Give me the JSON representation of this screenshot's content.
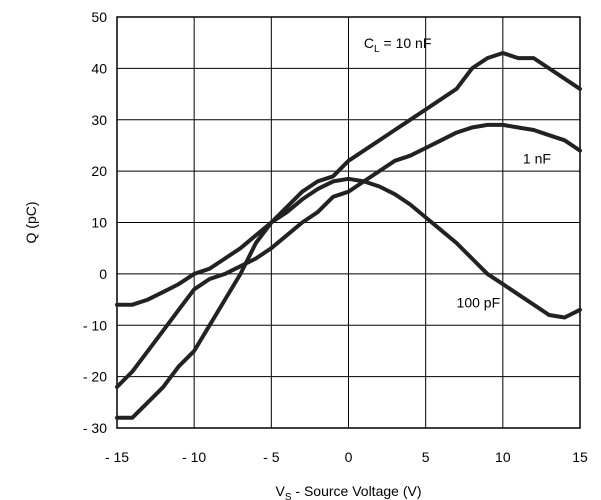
{
  "chart_data": {
    "type": "line",
    "xlabel": {
      "main": "V",
      "sub": "S",
      "rest": " - Source Voltage (V)"
    },
    "ylabel": "Q (pC)",
    "xlim": [
      -15,
      15
    ],
    "ylim": [
      -30,
      50
    ],
    "xticks": [
      -15,
      -10,
      -5,
      0,
      5,
      10,
      15
    ],
    "yticks": [
      -30,
      -20,
      -10,
      0,
      10,
      20,
      30,
      40,
      50
    ],
    "xtick_labels": [
      "- 15",
      "- 10",
      "- 5",
      "0",
      "5",
      "10",
      "15"
    ],
    "ytick_labels": [
      "- 30",
      "- 20",
      "- 10",
      "0",
      "10",
      "20",
      "30",
      "40",
      "50"
    ],
    "grid": true,
    "series": [
      {
        "name": "C_L = 10 nF",
        "label": {
          "main": "C",
          "sub": "L",
          "rest": " = 10 nF"
        },
        "x": [
          -15,
          -14,
          -13,
          -12,
          -11,
          -10,
          -9,
          -8,
          -7,
          -6,
          -5,
          -4,
          -3,
          -2,
          -1,
          0,
          1,
          2,
          3,
          4,
          5,
          6,
          7,
          8,
          9,
          10,
          11,
          12,
          13,
          14,
          15
        ],
        "y": [
          -28,
          -28,
          -25,
          -22,
          -18,
          -15,
          -10,
          -5,
          0,
          6,
          10,
          13,
          16,
          18,
          19,
          22,
          24,
          26,
          28,
          30,
          32,
          34,
          36,
          40,
          42,
          43,
          42,
          42,
          40,
          38,
          36
        ]
      },
      {
        "name": "1 nF",
        "x": [
          -15,
          -14,
          -13,
          -12,
          -11,
          -10,
          -9,
          -8,
          -7,
          -6,
          -5,
          -4,
          -3,
          -2,
          -1,
          0,
          1,
          2,
          3,
          4,
          5,
          6,
          7,
          8,
          9,
          10,
          11,
          12,
          13,
          14,
          15
        ],
        "y": [
          -22,
          -19,
          -15,
          -11,
          -7,
          -3,
          -1,
          0,
          1.5,
          3,
          5,
          7.5,
          10,
          12,
          15,
          16,
          18,
          20,
          22,
          23,
          24.5,
          26,
          27.5,
          28.5,
          29,
          29,
          28.5,
          28,
          27,
          26,
          24
        ]
      },
      {
        "name": "100 pF",
        "x": [
          -15,
          -14,
          -13,
          -12,
          -11,
          -10,
          -9,
          -8,
          -7,
          -6,
          -5,
          -4,
          -3,
          -2,
          -1,
          0,
          1,
          2,
          3,
          4,
          5,
          6,
          7,
          8,
          9,
          10,
          11,
          12,
          13,
          14,
          15
        ],
        "y": [
          -6,
          -6,
          -5,
          -3.5,
          -2,
          0,
          1,
          3,
          5,
          7.5,
          10,
          12,
          14.5,
          16.5,
          18,
          18.5,
          18,
          17,
          15.5,
          13.5,
          11,
          8.5,
          6,
          3,
          0,
          -2,
          -4,
          -6,
          -8,
          -8.5,
          -7
        ]
      }
    ],
    "series_label_anchor": [
      {
        "x": 1.0,
        "y": 44.0
      },
      {
        "x": 11.3,
        "y": 21.5
      },
      {
        "x": 7.0,
        "y": -6.5
      }
    ]
  }
}
